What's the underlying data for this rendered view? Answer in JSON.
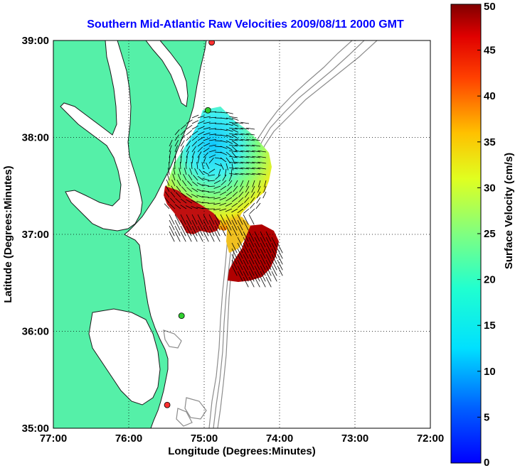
{
  "title": "Southern Mid-Atlantic Raw Velocities 2009/08/11 2000 GMT",
  "map": {
    "xlabel": "Longitude (Degrees:Minutes)",
    "ylabel": "Latitude (Degrees:Minutes)",
    "x_ticks": [
      "77:00",
      "76:00",
      "75:00",
      "74:00",
      "73:00",
      "72:00"
    ],
    "y_ticks": [
      "39:00",
      "38:00",
      "37:00",
      "36:00",
      "35:00"
    ],
    "lon_range": [
      -77,
      -72
    ],
    "lat_range": [
      35,
      39
    ],
    "grid": true,
    "land_color": "#55f0a8",
    "coast_color": "#1a1a1a",
    "bathymetry_color": "#8c8c8c",
    "station_markers": [
      {
        "color": "#ff3030",
        "lon": -74.9,
        "lat": 38.98
      },
      {
        "color": "#30d030",
        "lon": -74.95,
        "lat": 38.28
      },
      {
        "color": "#30d030",
        "lon": -75.3,
        "lat": 36.16
      },
      {
        "color": "#ff3030",
        "lon": -75.49,
        "lat": 35.24
      }
    ]
  },
  "colorbar": {
    "label": "Surface Velocity (cm/s)",
    "ticks": [
      "0",
      "5",
      "10",
      "15",
      "20",
      "25",
      "30",
      "35",
      "40",
      "45",
      "50"
    ],
    "min": 0,
    "max": 50,
    "colormap": "jet"
  }
}
